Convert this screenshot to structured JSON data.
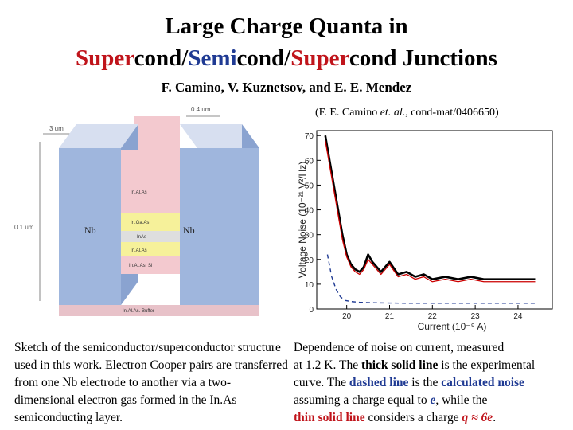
{
  "title": {
    "line1": "Large Charge Quanta in",
    "line2": [
      {
        "text": "Super",
        "color": "#c0141b"
      },
      {
        "text": "cond/",
        "color": "#000000"
      },
      {
        "text": "Semi",
        "color": "#1f3a93"
      },
      {
        "text": "cond/",
        "color": "#000000"
      },
      {
        "text": "Super",
        "color": "#c0141b"
      },
      {
        "text": "cond Junctions",
        "color": "#000000"
      }
    ]
  },
  "authors": "F. Camino, V. Kuznetsov, and E. E. Mendez",
  "reference": {
    "prefix": "(F. E. Camino ",
    "italic": "et. al.",
    "suffix": ", cond-mat/0406650)"
  },
  "sketch": {
    "dim_top": "0.4 um",
    "dim_width": "3 um",
    "dim_height": "0.1 um",
    "left_label": "Nb",
    "right_label": "Nb",
    "layers": [
      "In.Al.As",
      "In.Ga.As",
      "InAs",
      "In.Al.As",
      "In.Al.As: Si"
    ],
    "buffer_label": "In.Al.As. Buffer",
    "colors": {
      "nb": "#9fb6dd",
      "nb_top": "#d7dff0",
      "channel": "#f3c9cf",
      "buffer": "#e8c2c9",
      "layer_yellow": "#f6f19a",
      "layer_grey": "#dedede"
    }
  },
  "chart_data": {
    "type": "line",
    "xlabel": "Current (10⁻⁹ A)",
    "ylabel": "Voltage Noise (10⁻²¹ V²/Hz)",
    "xlim": [
      19.3,
      24.8
    ],
    "ylim": [
      0,
      72
    ],
    "xticks": [
      20,
      21,
      22,
      23,
      24
    ],
    "yticks": [
      0,
      10,
      20,
      30,
      40,
      50,
      60,
      70
    ],
    "series": [
      {
        "style": "thick solid",
        "color": "#000000",
        "x": [
          19.5,
          19.6,
          19.7,
          19.8,
          19.9,
          20.0,
          20.1,
          20.2,
          20.3,
          20.4,
          20.5,
          20.6,
          20.8,
          21.0,
          21.2,
          21.4,
          21.6,
          21.8,
          22.0,
          22.3,
          22.6,
          22.9,
          23.2,
          23.5,
          23.8,
          24.1,
          24.4
        ],
        "y": [
          70,
          60,
          50,
          40,
          30,
          22,
          18,
          16,
          15,
          17,
          22,
          19,
          15,
          19,
          14,
          15,
          13,
          14,
          12,
          13,
          12,
          13,
          12,
          12,
          12,
          12,
          12
        ]
      },
      {
        "style": "thin solid",
        "color": "#cc0000",
        "x": [
          19.5,
          19.6,
          19.7,
          19.8,
          19.9,
          20.0,
          20.1,
          20.2,
          20.3,
          20.4,
          20.5,
          20.6,
          20.8,
          21.0,
          21.2,
          21.4,
          21.6,
          21.8,
          22.0,
          22.3,
          22.6,
          22.9,
          23.2,
          23.5,
          23.8,
          24.1,
          24.4
        ],
        "y": [
          68,
          58,
          48,
          38,
          28,
          21,
          17,
          15,
          14,
          16,
          20,
          18,
          14,
          18,
          13,
          14,
          12,
          13,
          11,
          12,
          11,
          12,
          11,
          11,
          11,
          11,
          11
        ]
      },
      {
        "style": "dashed",
        "color": "#1f3a93",
        "x": [
          19.55,
          19.65,
          19.75,
          19.85,
          19.95,
          20.1,
          20.3,
          20.6,
          21.0,
          21.5,
          22.0,
          22.5,
          23.0,
          23.5,
          24.0,
          24.4
        ],
        "y": [
          22,
          13,
          8,
          5,
          3.5,
          3,
          2.7,
          2.5,
          2.4,
          2.3,
          2.3,
          2.3,
          2.3,
          2.3,
          2.3,
          2.3
        ]
      }
    ]
  },
  "caption_left": "Sketch of the semiconductor/superconductor structure used in this work. Electron Cooper pairs are transferred from one Nb electrode to another via a two-dimensional electron gas formed in the In.As semiconducting layer.",
  "caption_right": {
    "line1": "Dependence of noise on current,  measured",
    "line2_pre": "at 1.2 K. The ",
    "line2_bold": "thick solid line",
    "line2_post": " is the experimental",
    "line3_pre": "curve. The ",
    "line3_blue1": "dashed line",
    "line3_mid": " is the ",
    "line3_blue2": "calculated noise",
    "line4_pre": "assuming a charge equal to ",
    "line4_e": "e",
    "line4_post": ", while the",
    "line5_red1": "thin solid line",
    "line5_mid": " considers a charge ",
    "line5_red2": "q ≈ 6e",
    "line5_end": "."
  }
}
